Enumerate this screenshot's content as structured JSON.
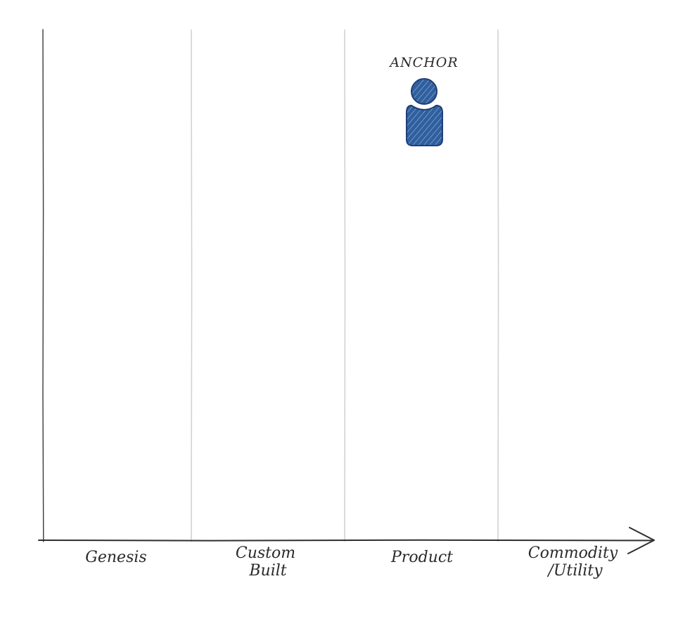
{
  "map": {
    "stages": [
      {
        "lines": [
          "Genesis"
        ]
      },
      {
        "lines": [
          "Custom",
          "Built"
        ]
      },
      {
        "lines": [
          "Product"
        ]
      },
      {
        "lines": [
          "Commodity",
          "/Utility"
        ]
      }
    ],
    "anchor": {
      "label": "ANCHOR",
      "icon": "person-icon"
    }
  },
  "colors": {
    "gridline": "#d2d2d2",
    "axis": "#3a3a3a",
    "text": "#2a2a2a",
    "anchor_fill": "#2f5f9f",
    "anchor_stroke": "#1d3f75"
  }
}
